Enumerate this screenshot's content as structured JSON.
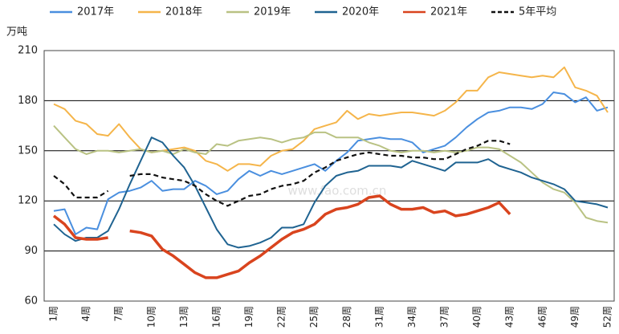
{
  "chart_data": {
    "type": "line",
    "unit_label": "万吨",
    "watermark": "www.fao.com.cn",
    "categories": [
      "1周",
      null,
      null,
      "4周",
      null,
      null,
      "7周",
      null,
      null,
      "10周",
      null,
      null,
      "13周",
      null,
      null,
      "16周",
      null,
      null,
      "19周",
      null,
      null,
      "22周",
      null,
      null,
      "25周",
      null,
      null,
      "28周",
      null,
      null,
      "31周",
      null,
      null,
      "34周",
      null,
      null,
      "37周",
      null,
      null,
      "40周",
      null,
      null,
      "43周",
      null,
      null,
      "46周",
      null,
      null,
      "49周",
      null,
      null,
      "52周"
    ],
    "ylim": [
      60,
      210
    ],
    "yticks": [
      60,
      90,
      120,
      150,
      180,
      210
    ],
    "grid": true,
    "legend": "top",
    "series": [
      {
        "name": "2017年",
        "color": "#4a8fdf",
        "values": [
          114,
          115,
          100,
          104,
          103,
          121,
          125,
          126,
          128,
          132,
          126,
          127,
          127,
          132,
          129,
          124,
          126,
          133,
          138,
          135,
          138,
          136,
          138,
          140,
          142,
          138,
          144,
          149,
          156,
          157,
          158,
          157,
          157,
          155,
          149,
          151,
          153,
          158,
          164,
          169,
          173,
          174,
          176,
          176,
          175,
          178,
          185,
          184,
          179,
          182,
          174,
          176
        ]
      },
      {
        "name": "2018年",
        "color": "#f5b54a",
        "values": [
          178,
          175,
          168,
          166,
          160,
          159,
          166,
          158,
          151,
          149,
          150,
          151,
          152,
          150,
          144,
          142,
          138,
          142,
          142,
          141,
          147,
          150,
          151,
          156,
          163,
          165,
          167,
          174,
          169,
          172,
          171,
          172,
          173,
          173,
          172,
          171,
          174,
          179,
          186,
          186,
          194,
          197,
          196,
          195,
          194,
          195,
          194,
          200,
          188,
          186,
          183,
          173
        ]
      },
      {
        "name": "2019年",
        "color": "#b9c283",
        "values": [
          165,
          158,
          151,
          148,
          150,
          150,
          149,
          150,
          151,
          149,
          150,
          148,
          151,
          149,
          148,
          154,
          153,
          156,
          157,
          158,
          157,
          155,
          157,
          158,
          161,
          161,
          158,
          158,
          158,
          155,
          153,
          150,
          149,
          150,
          150,
          149,
          150,
          149,
          150,
          152,
          152,
          151,
          147,
          143,
          137,
          131,
          127,
          125,
          119,
          110,
          108,
          107
        ]
      },
      {
        "name": "2020年",
        "color": "#1f6391",
        "values": [
          106,
          100,
          96,
          98,
          98,
          102,
          115,
          130,
          144,
          158,
          155,
          147,
          140,
          129,
          116,
          103,
          94,
          92,
          93,
          95,
          98,
          104,
          104,
          106,
          119,
          129,
          135,
          137,
          138,
          141,
          141,
          141,
          140,
          144,
          142,
          140,
          138,
          143,
          143,
          143,
          145,
          141,
          139,
          137,
          134,
          132,
          130,
          127,
          120,
          119,
          118,
          116
        ]
      },
      {
        "name": "2021年",
        "color": "#d9441e",
        "values": [
          111,
          106,
          98,
          97,
          97,
          98,
          null,
          102,
          101,
          99,
          91,
          87,
          82,
          77,
          74,
          74,
          76,
          78,
          83,
          87,
          92,
          97,
          101,
          103,
          106,
          112,
          115,
          116,
          118,
          122,
          123,
          118,
          115,
          115,
          116,
          113,
          114,
          111,
          112,
          114,
          116,
          119,
          112,
          null,
          null,
          null,
          null,
          null,
          null,
          null,
          null,
          null
        ]
      },
      {
        "name": "5年平均",
        "color": "#111111",
        "dashed": true,
        "values": [
          135,
          130,
          122,
          122,
          122,
          126,
          null,
          135,
          136,
          136,
          134,
          133,
          132,
          129,
          124,
          120,
          117,
          120,
          123,
          124,
          127,
          129,
          130,
          132,
          137,
          140,
          144,
          146,
          148,
          149,
          148,
          147,
          147,
          146,
          146,
          145,
          145,
          148,
          151,
          153,
          156,
          156,
          154,
          null,
          null,
          null,
          null,
          null,
          null,
          null,
          null,
          null
        ]
      }
    ]
  }
}
